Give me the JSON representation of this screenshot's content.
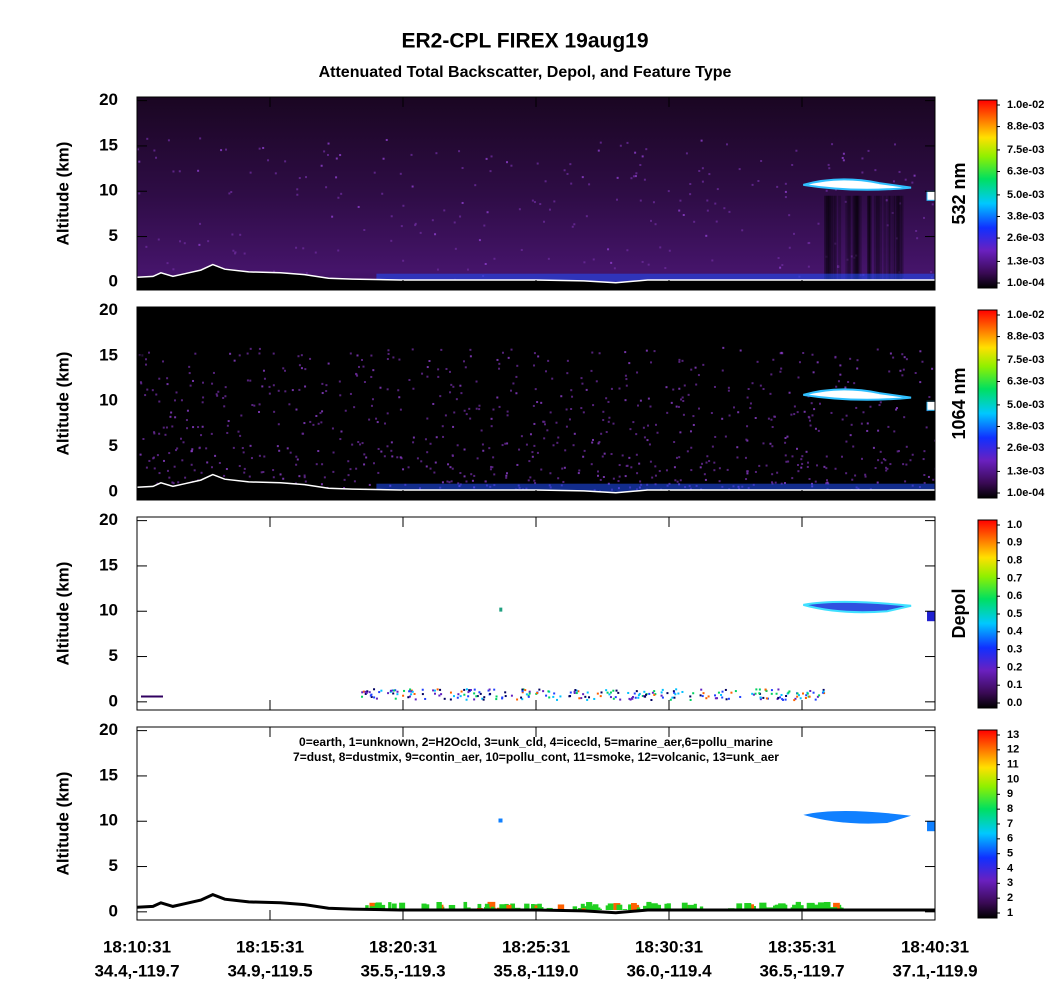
{
  "title": "ER2-CPL FIREX 19aug19",
  "subtitle": "Attenuated Total Backscatter, Depol, and Feature Type",
  "x_tick_labels": [
    {
      "time": "18:10:31",
      "position": "34.4,-119.7"
    },
    {
      "time": "18:15:31",
      "position": "34.9,-119.5"
    },
    {
      "time": "18:20:31",
      "position": "35.5,-119.3"
    },
    {
      "time": "18:25:31",
      "position": "35.8,-119.0"
    },
    {
      "time": "18:30:31",
      "position": "36.0,-119.4"
    },
    {
      "time": "18:35:31",
      "position": "36.5,-119.7"
    },
    {
      "time": "18:40:31",
      "position": "37.1,-119.9"
    }
  ],
  "panels": [
    {
      "kind": "backscatter",
      "ylabel": "Altitude (km)",
      "ylim": [
        -0.9,
        20.4
      ],
      "yticks": [
        0,
        5,
        10,
        15,
        20
      ],
      "colorbar_label": "532 nm",
      "clim": [
        0.0001,
        0.01
      ],
      "cticks": [
        {
          "value": 0.0001,
          "label": "1.0e-04"
        },
        {
          "value": 0.0013,
          "label": "1.3e-03"
        },
        {
          "value": 0.0026,
          "label": "2.6e-03"
        },
        {
          "value": 0.0038,
          "label": "3.8e-03"
        },
        {
          "value": 0.005,
          "label": "5.0e-03"
        },
        {
          "value": 0.0063,
          "label": "6.3e-03"
        },
        {
          "value": 0.0075,
          "label": "7.5e-03"
        },
        {
          "value": 0.0088,
          "label": "8.8e-03"
        },
        {
          "value": 0.01,
          "label": "1.0e-02"
        }
      ]
    },
    {
      "kind": "backscatter-1064",
      "ylabel": "Altitude (km)",
      "ylim": [
        -0.9,
        20.4
      ],
      "yticks": [
        0,
        5,
        10,
        15,
        20
      ],
      "colorbar_label": "1064 nm",
      "clim": [
        0.0001,
        0.01
      ],
      "cticks": [
        {
          "value": 0.0001,
          "label": "1.0e-04"
        },
        {
          "value": 0.0013,
          "label": "1.3e-03"
        },
        {
          "value": 0.0026,
          "label": "2.6e-03"
        },
        {
          "value": 0.0038,
          "label": "3.8e-03"
        },
        {
          "value": 0.005,
          "label": "5.0e-03"
        },
        {
          "value": 0.0063,
          "label": "6.3e-03"
        },
        {
          "value": 0.0075,
          "label": "7.5e-03"
        },
        {
          "value": 0.0088,
          "label": "8.8e-03"
        },
        {
          "value": 0.01,
          "label": "1.0e-02"
        }
      ]
    },
    {
      "kind": "depol",
      "ylabel": "Altitude (km)",
      "ylim": [
        -0.9,
        20.4
      ],
      "yticks": [
        0,
        5,
        10,
        15,
        20
      ],
      "colorbar_label": "Depol",
      "clim": [
        0,
        1
      ],
      "cticks": [
        {
          "value": 0,
          "label": "0.0"
        },
        0.1,
        0.2,
        0.3,
        0.4,
        0.5,
        0.6,
        0.7,
        0.8,
        0.9,
        {
          "value": 1,
          "label": "1.0"
        }
      ]
    },
    {
      "kind": "feature",
      "ylabel": "Altitude (km)",
      "ylim": [
        -0.9,
        20.4
      ],
      "yticks": [
        0,
        5,
        10,
        15,
        20
      ],
      "legend_lines": [
        "0=earth, 1=unknown, 2=H2Ocld, 3=unk_cld, 4=icecld, 5=marine_aer,6=pollu_marine",
        "7=dust, 8=dustmix, 9=contin_aer, 10=pollu_cont, 11=smoke, 12=volcanic, 13=unk_aer"
      ],
      "clim": [
        1,
        13
      ],
      "cticks": [
        1,
        2,
        3,
        4,
        5,
        6,
        7,
        8,
        9,
        10,
        11,
        12,
        13
      ]
    }
  ]
}
